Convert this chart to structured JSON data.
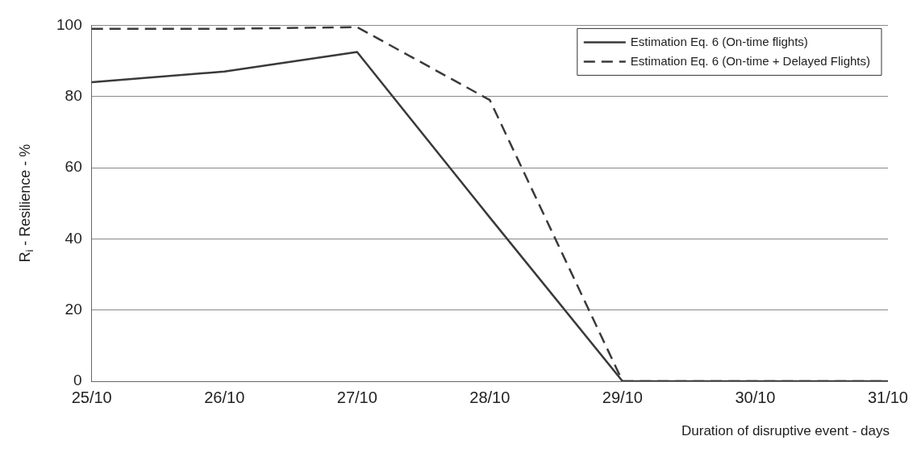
{
  "chart_data": {
    "type": "line",
    "xlabel": "Duration of disruptive event - days",
    "ylabel": "R$_{i}$ - Resilience - %",
    "categories": [
      "25/10",
      "26/10",
      "27/10",
      "28/10",
      "29/10",
      "30/10",
      "31/10"
    ],
    "series": [
      {
        "name": "Estimation Eq. 6 (On-time flights)",
        "color": "#3a3a3a",
        "line_style": "solid",
        "values": [
          84,
          87,
          92.5,
          46,
          0,
          0,
          0
        ]
      },
      {
        "name": "Estimation Eq. 6 (On-time + Delayed Flights)",
        "color": "#3a3a3a",
        "line_style": "dashed",
        "values": [
          99,
          99,
          99.5,
          79,
          0,
          0,
          0
        ]
      }
    ],
    "ylim": [
      0,
      100
    ],
    "yticks": [
      0,
      20,
      40,
      60,
      80,
      100
    ],
    "grid": "y",
    "legend": "top right",
    "marker": "none"
  }
}
